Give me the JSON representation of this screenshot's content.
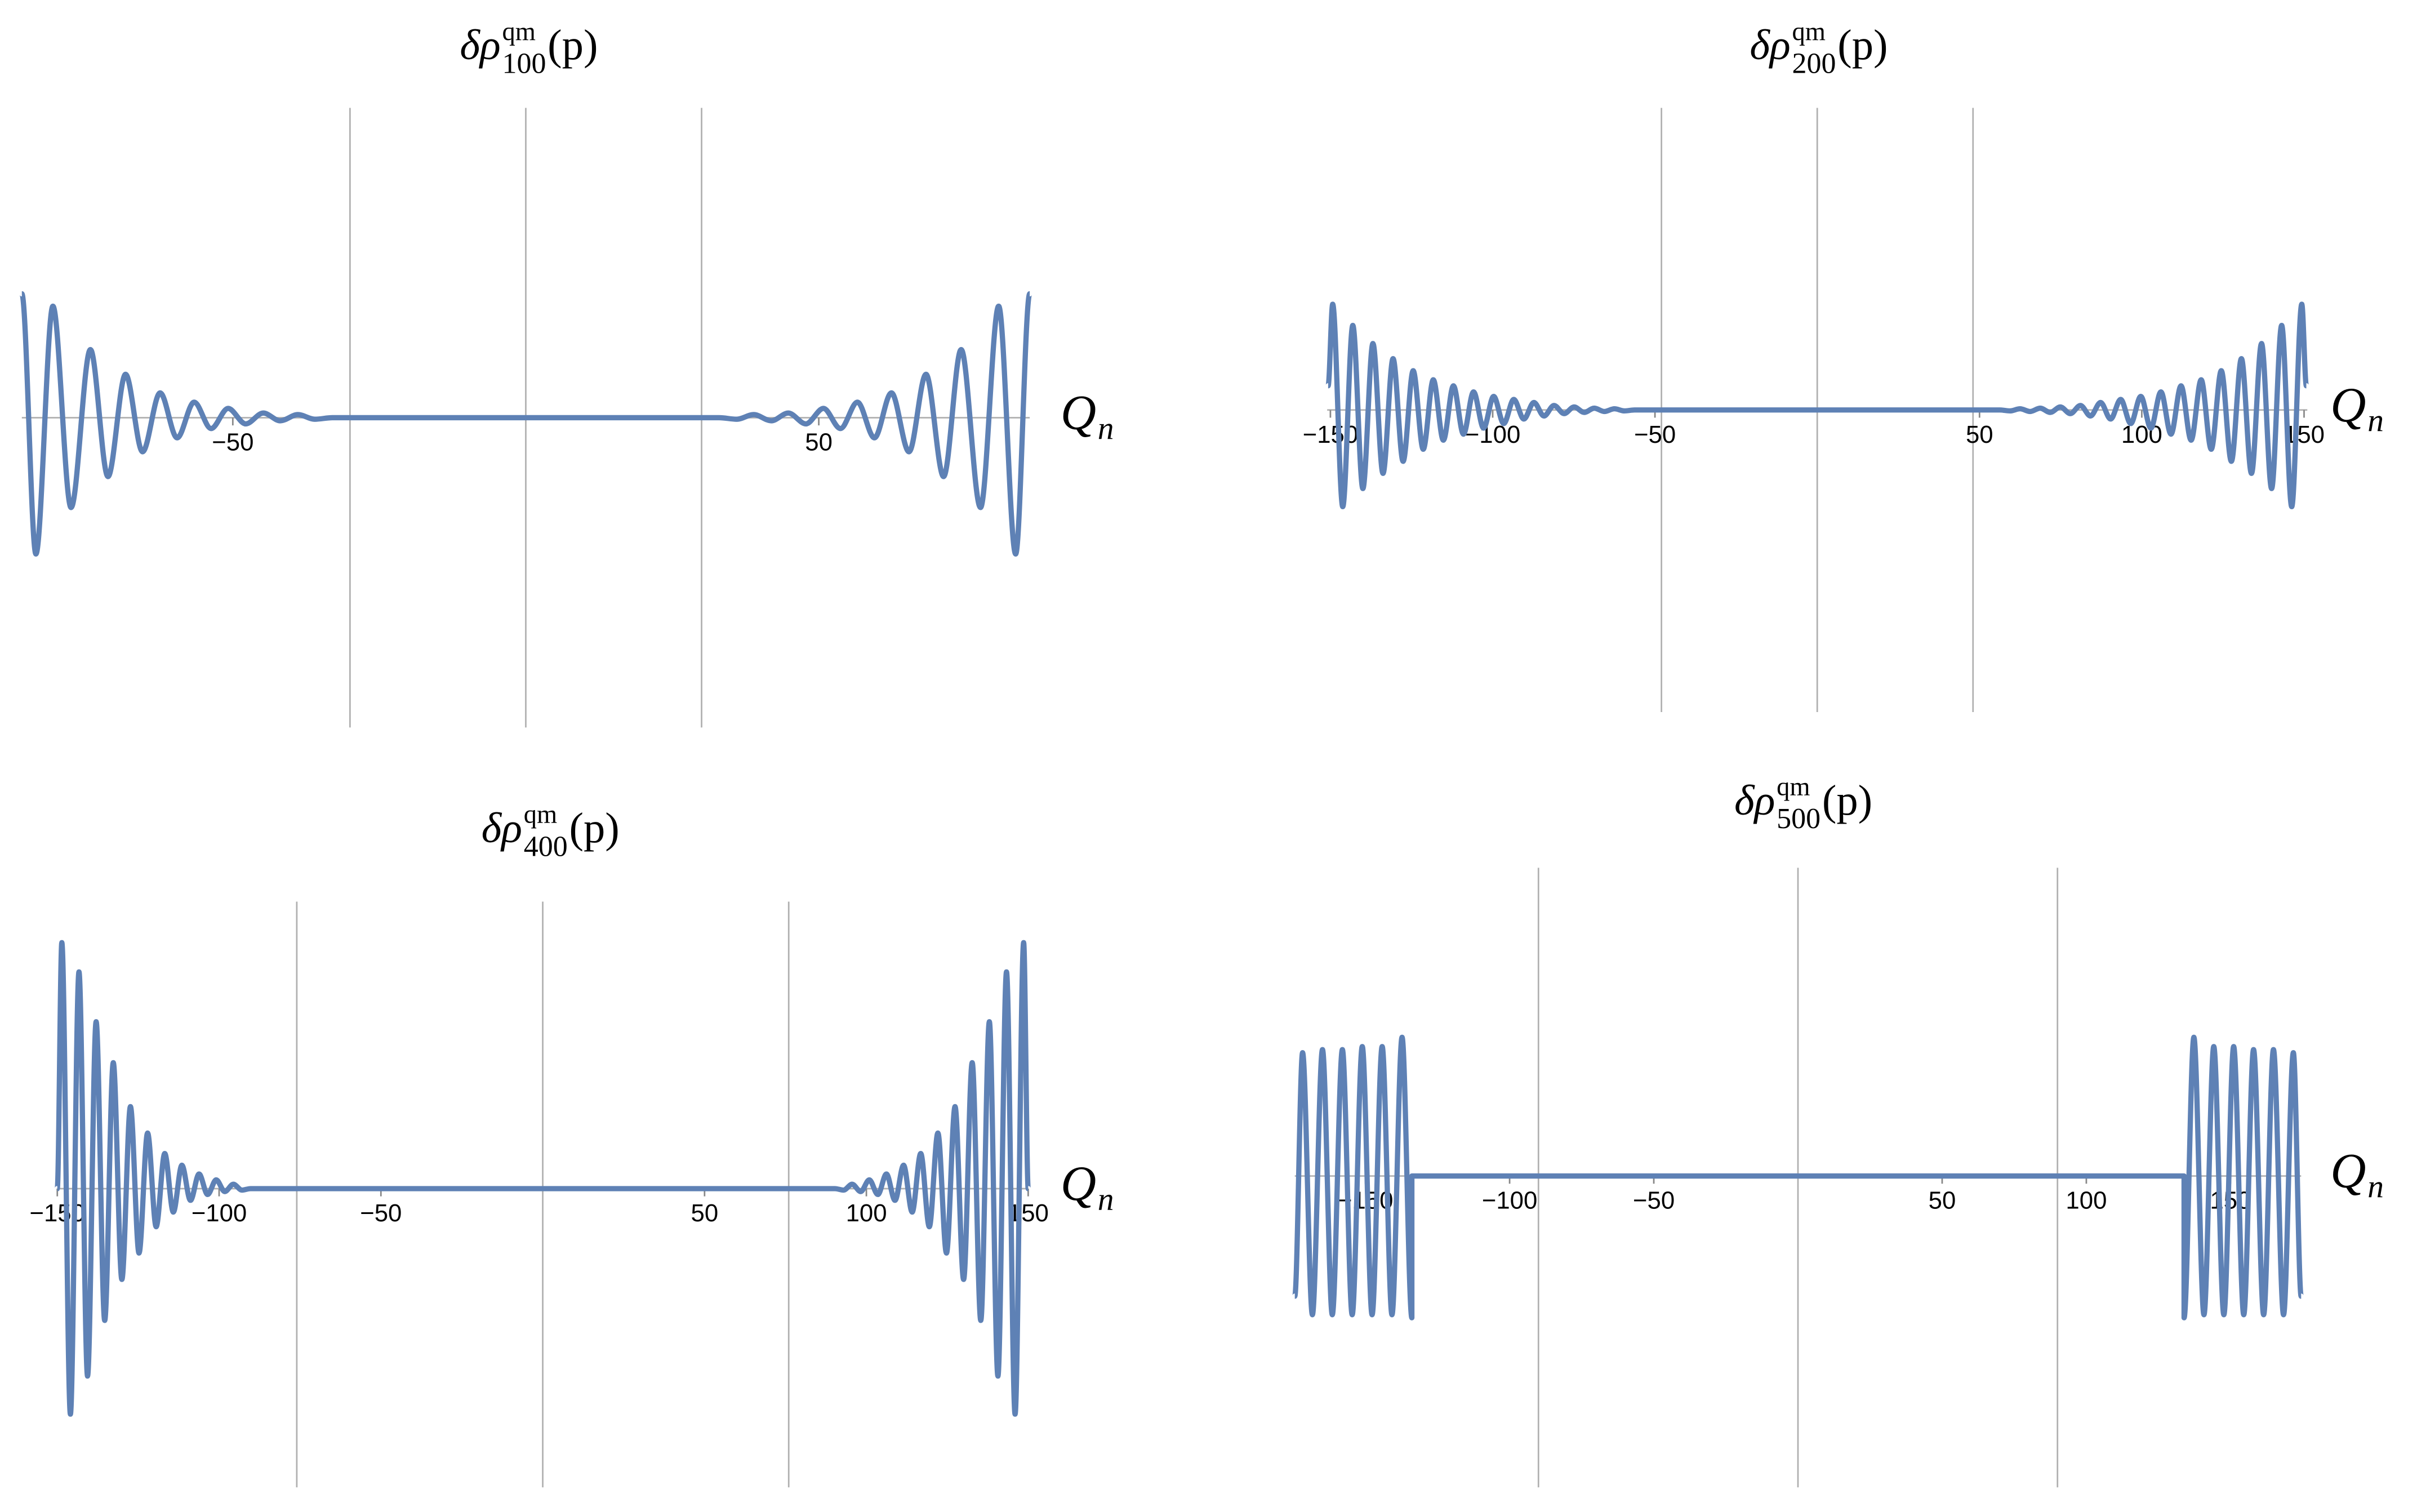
{
  "chart_data": [
    {
      "type": "line",
      "title": {
        "base": "δρ",
        "sup": "qm",
        "sub": "100",
        "arg": "(p)"
      },
      "xlabel": {
        "main": "Q",
        "sub": "n"
      },
      "xlim": [
        -86,
        86
      ],
      "ylim": [
        -1,
        1
      ],
      "xticks": [
        {
          "value": -50,
          "label": "−50"
        },
        50
      ],
      "x_gridlines": [
        -30,
        30
      ],
      "x": [
        -86,
        -83.6,
        -80.7,
        -77.6,
        -74.3,
        -71.3,
        -68.3,
        -65.4,
        -62.4,
        -59.5,
        -56.6,
        -53.7,
        -50.8,
        -47.8,
        -44.8,
        -41.9,
        -38.9,
        -36.0,
        -33,
        33,
        36.0,
        38.9,
        41.9,
        44.8,
        47.8,
        50.8,
        53.7,
        56.6,
        59.5,
        62.4,
        65.4,
        68.3,
        71.3,
        74.3,
        77.6,
        80.7,
        83.6,
        86
      ],
      "series": [
        {
          "color": "#5e81b5",
          "values": [
            0.4,
            -0.44,
            0.36,
            -0.29,
            0.22,
            -0.19,
            0.14,
            -0.11,
            0.08,
            -0.065,
            0.05,
            -0.035,
            0.03,
            -0.02,
            0.015,
            -0.01,
            0.01,
            -0.005,
            0,
            0,
            -0.005,
            0.01,
            -0.01,
            0.015,
            -0.02,
            0.03,
            -0.035,
            0.05,
            -0.065,
            0.08,
            -0.11,
            0.14,
            -0.19,
            0.22,
            -0.29,
            0.36,
            -0.44,
            0.4
          ]
        }
      ]
    },
    {
      "type": "line",
      "title": {
        "base": "δρ",
        "sup": "qm",
        "sub": "200",
        "arg": "(p)"
      },
      "xlabel": {
        "main": "Q",
        "sub": "n"
      },
      "xlim": [
        -151,
        151
      ],
      "ylim": [
        -1,
        1
      ],
      "xticks": [
        {
          "value": -150,
          "label": "−150"
        },
        {
          "value": -100,
          "label": "−100"
        },
        {
          "value": -50,
          "label": "−50"
        },
        50,
        100,
        150
      ],
      "x_gridlines": [
        -48,
        48
      ],
      "x": [
        -150.7,
        -149.3,
        -146.2,
        -143.1,
        -140.0,
        -136.9,
        -133.8,
        -130.7,
        -127.6,
        -124.5,
        -121.4,
        -118.3,
        -115.2,
        -112.1,
        -109.0,
        -105.9,
        -102.8,
        -99.7,
        -96.6,
        -93.5,
        -90.4,
        -87.3,
        -84.2,
        -81.1,
        -78.0,
        -74.9,
        -71.8,
        -68.7,
        -65.6,
        -62.5,
        -59.4,
        -56.3,
        56.3,
        59.4,
        62.5,
        65.6,
        68.7,
        71.8,
        74.9,
        78.0,
        81.1,
        84.2,
        87.3,
        90.4,
        93.5,
        96.6,
        99.7,
        102.8,
        105.9,
        109.0,
        112.1,
        115.2,
        118.3,
        121.4,
        124.5,
        127.6,
        130.7,
        133.8,
        136.9,
        140.0,
        143.1,
        146.2,
        149.3,
        150.7
      ],
      "series": [
        {
          "color": "#5e81b5",
          "values": [
            0.08,
            0.35,
            -0.32,
            0.28,
            -0.26,
            0.22,
            -0.21,
            0.17,
            -0.17,
            0.13,
            -0.13,
            0.1,
            -0.1,
            0.08,
            -0.08,
            0.06,
            -0.06,
            0.045,
            -0.045,
            0.035,
            -0.03,
            0.025,
            -0.02,
            0.015,
            -0.012,
            0.01,
            -0.008,
            0.006,
            -0.005,
            0.004,
            -0.003,
            0,
            0,
            -0.003,
            0.004,
            -0.005,
            0.006,
            -0.008,
            0.01,
            -0.012,
            0.015,
            -0.02,
            0.025,
            -0.03,
            0.035,
            -0.045,
            0.045,
            -0.06,
            0.06,
            -0.08,
            0.08,
            -0.1,
            0.1,
            -0.13,
            0.13,
            -0.17,
            0.17,
            -0.21,
            0.22,
            -0.26,
            0.28,
            -0.32,
            0.35,
            0.08
          ]
        }
      ]
    },
    {
      "type": "line",
      "title": {
        "base": "δρ",
        "sup": "qm",
        "sub": "400",
        "arg": "(p)"
      },
      "xlabel": {
        "main": "Q",
        "sub": "n"
      },
      "xlim": [
        -150,
        150
      ],
      "ylim": [
        -1.02,
        0.98
      ],
      "xticks": [
        {
          "value": -150,
          "label": "−150"
        },
        {
          "value": -100,
          "label": "−100"
        },
        {
          "value": -50,
          "label": "−50"
        },
        50,
        100,
        150
      ],
      "x_gridlines": [
        -76,
        76
      ],
      "x": [
        -150,
        -148.6,
        -145.95,
        -143.3,
        -140.65,
        -138.0,
        -135.35,
        -132.7,
        -130.05,
        -127.4,
        -124.75,
        -122.1,
        -119.45,
        -116.8,
        -114.15,
        -111.5,
        -108.85,
        -106.2,
        -103.55,
        -100.9,
        -98.25,
        -95.6,
        -92.95,
        -90.3,
        90.3,
        92.95,
        95.6,
        98.25,
        100.9,
        103.55,
        106.2,
        108.85,
        111.5,
        114.15,
        116.8,
        119.45,
        122.1,
        124.75,
        127.4,
        130.05,
        132.7,
        135.35,
        138.0,
        140.65,
        143.3,
        145.95,
        148.6,
        150
      ],
      "series": [
        {
          "color": "#5e81b5",
          "values": [
            0,
            0.84,
            -0.77,
            0.74,
            -0.64,
            0.57,
            -0.45,
            0.43,
            -0.31,
            0.28,
            -0.22,
            0.19,
            -0.13,
            0.12,
            -0.08,
            0.08,
            -0.04,
            0.05,
            -0.02,
            0.03,
            -0.01,
            0.015,
            -0.005,
            0,
            0,
            -0.005,
            0.015,
            -0.01,
            0.03,
            -0.02,
            0.05,
            -0.04,
            0.08,
            -0.08,
            0.12,
            -0.13,
            0.19,
            -0.22,
            0.28,
            -0.31,
            0.43,
            -0.45,
            0.57,
            -0.64,
            0.74,
            -0.77,
            0.84,
            0
          ]
        }
      ]
    },
    {
      "type": "line",
      "title": {
        "base": "δρ",
        "sup": "qm",
        "sub": "500",
        "arg": "(p)"
      },
      "xlabel": {
        "main": "Q",
        "sub": "n"
      },
      "xlim": [
        -174.5,
        174.5
      ],
      "ylim": [
        -1.01,
        1
      ],
      "xticks": [
        {
          "value": -150,
          "label": "−150"
        },
        {
          "value": -100,
          "label": "−100"
        },
        {
          "value": -50,
          "label": "−50"
        },
        50,
        100,
        150
      ],
      "x_gridlines": [
        -90,
        90
      ],
      "x": [
        -174.5,
        -171.8,
        -168.4,
        -164.9,
        -161.5,
        -158.0,
        -154.6,
        -151.1,
        -147.7,
        -144.2,
        -140.8,
        -137.3,
        -133.9,
        -133.9,
        133.9,
        133.9,
        137.3,
        140.8,
        144.2,
        147.7,
        151.1,
        154.6,
        158.0,
        161.5,
        164.9,
        168.4,
        171.8,
        174.5
      ],
      "series": [
        {
          "color": "#5e81b5",
          "values": [
            -0.39,
            0.4,
            -0.45,
            0.41,
            -0.45,
            0.41,
            -0.45,
            0.42,
            -0.45,
            0.42,
            -0.45,
            0.45,
            -0.46,
            0,
            0,
            -0.46,
            0.45,
            -0.45,
            0.42,
            -0.45,
            0.42,
            -0.45,
            0.41,
            -0.45,
            0.41,
            -0.45,
            0.4,
            -0.39
          ]
        }
      ]
    }
  ]
}
